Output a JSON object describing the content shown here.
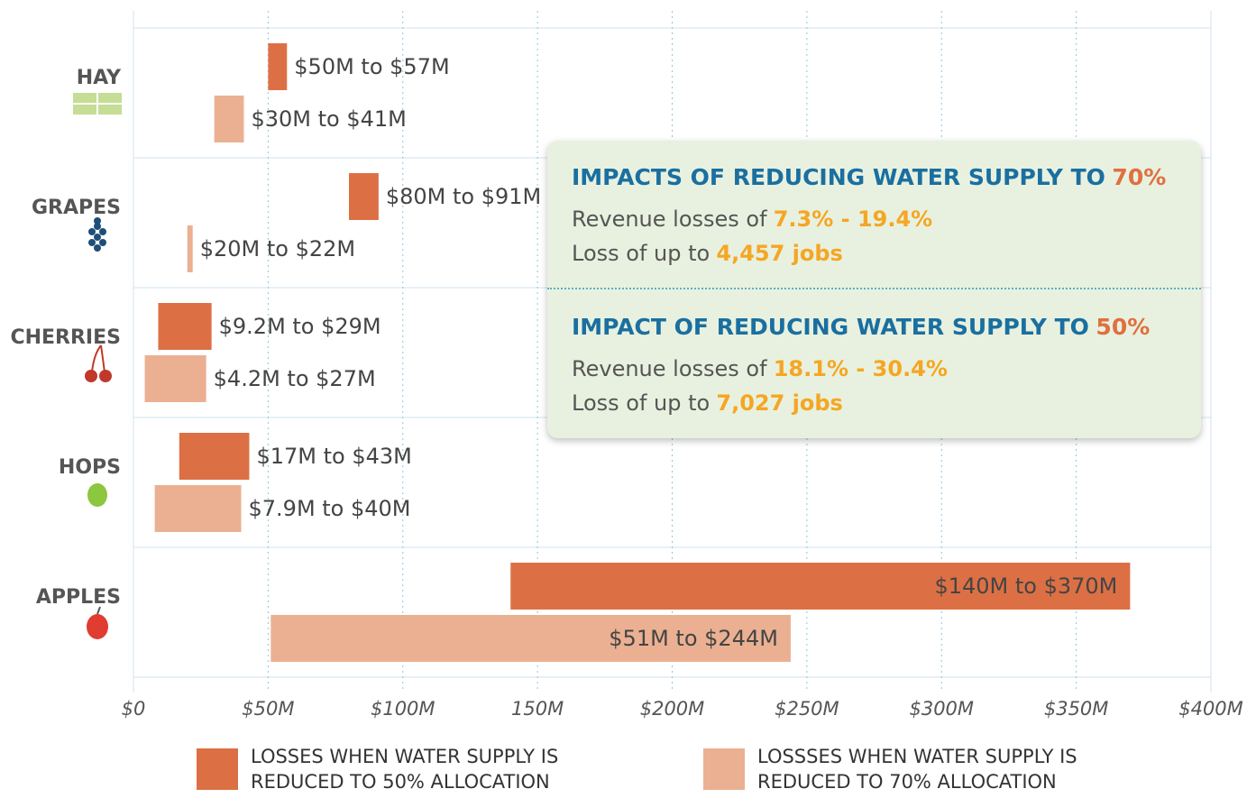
{
  "chart_data": {
    "type": "floating_bar",
    "categories": [
      "HAY",
      "GRAPES",
      "CHERRIES",
      "HOPS",
      "APPLES"
    ],
    "series": [
      {
        "name": "LOSSES WHEN WATER SUPPLY IS REDUCED TO 50% ALLOCATION",
        "color": "#dc7044",
        "values": [
          [
            50,
            57
          ],
          [
            80,
            91
          ],
          [
            9.2,
            29
          ],
          [
            17,
            43
          ],
          [
            140,
            370
          ]
        ],
        "value_labels": [
          "$50M to $57M",
          "$80M to $91M",
          "$9.2M to $29M",
          "$17M to $43M",
          "$140M to $370M"
        ]
      },
      {
        "name": "LOSSSES WHEN WATER SUPPLY IS REDUCED TO 70% ALLOCATION",
        "color": "#ebb092",
        "values": [
          [
            30,
            41
          ],
          [
            20,
            22
          ],
          [
            4.2,
            27
          ],
          [
            7.9,
            40
          ],
          [
            51,
            244
          ]
        ],
        "value_labels": [
          "$30M to $41M",
          "$20M to $22M",
          "$4.2M to $27M",
          "$7.9M to $40M",
          "$51M to $244M"
        ]
      }
    ],
    "xlim": [
      0,
      400
    ],
    "xticks": [
      {
        "value": 0,
        "label": "$0"
      },
      {
        "value": 50,
        "label": "$50M"
      },
      {
        "value": 100,
        "label": "$100M"
      },
      {
        "value": 150,
        "label": "150M"
      },
      {
        "value": 200,
        "label": "$200M"
      },
      {
        "value": 250,
        "label": "$250M"
      },
      {
        "value": 300,
        "label": "$300M"
      },
      {
        "value": 350,
        "label": "$350M"
      },
      {
        "value": 400,
        "label": "$400M"
      }
    ],
    "grid": true,
    "annotations": [
      {
        "title": "IMPACTS OF REDUCING WATER SUPPLY TO",
        "title_highlight": "70%",
        "lines": [
          {
            "text": "Revenue losses of",
            "highlight": "7.3% - 19.4%"
          },
          {
            "text": "Loss of up to",
            "highlight": "4,457 jobs"
          }
        ]
      },
      {
        "title": "IMPACT OF REDUCING WATER SUPPLY TO",
        "title_highlight": "50%",
        "lines": [
          {
            "text": "Revenue losses of",
            "highlight": "18.1% - 30.4%"
          },
          {
            "text": "Loss of up to",
            "highlight": "7,027 jobs"
          }
        ]
      }
    ]
  }
}
